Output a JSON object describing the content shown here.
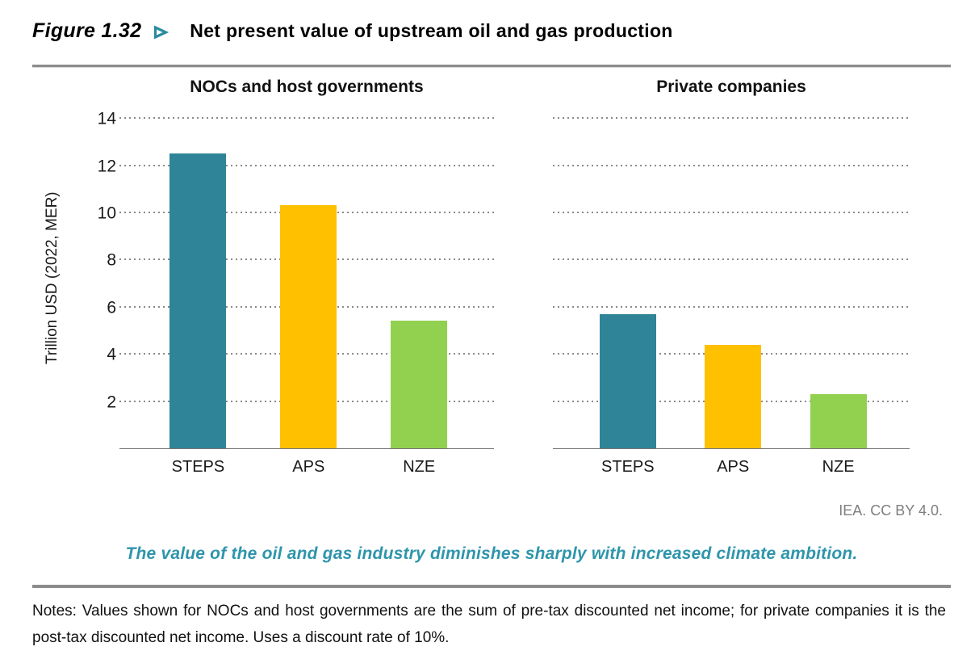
{
  "header": {
    "figure_label": "Figure 1.32",
    "arrow_icon": "triangle-right",
    "title": "Net present value of upstream oil and gas production"
  },
  "attribution": "IEA. CC BY 4.0.",
  "subtitle": "The value of the oil and gas industry diminishes sharply with increased climate ambition.",
  "notes": "Notes: Values shown for NOCs and host governments are the sum of pre-tax discounted net income; for private companies it is the post-tax discounted net income. Uses a discount rate of 10%.",
  "colors": {
    "steps_bar": "#2f8498",
    "aps_bar": "#ffc000",
    "nze_bar": "#92d050",
    "subtitle_text": "#2e95ab",
    "figure_arrow": "#2b8c9f",
    "gridline": "#8a8a8a",
    "axis_line": "#757575",
    "attribution_text": "#7f7f7f",
    "divider_rule": "#8c8c8c"
  },
  "chart_data": {
    "type": "bar",
    "title": "Net present value of upstream oil and gas production",
    "ylabel": "Trillion USD (2022, MER)",
    "xlabel": "",
    "ylim": [
      0,
      14.5
    ],
    "yticks": [
      2,
      4,
      6,
      8,
      10,
      12,
      14
    ],
    "grid": "horizontal-dotted",
    "legend": "none",
    "categories": [
      "STEPS",
      "APS",
      "NZE"
    ],
    "bar_colors": [
      "#2f8498",
      "#ffc000",
      "#92d050"
    ],
    "panels": [
      {
        "title": "NOCs and host governments",
        "values": [
          12.5,
          10.3,
          5.4
        ]
      },
      {
        "title": "Private companies",
        "values": [
          5.7,
          4.4,
          2.3
        ]
      }
    ]
  }
}
